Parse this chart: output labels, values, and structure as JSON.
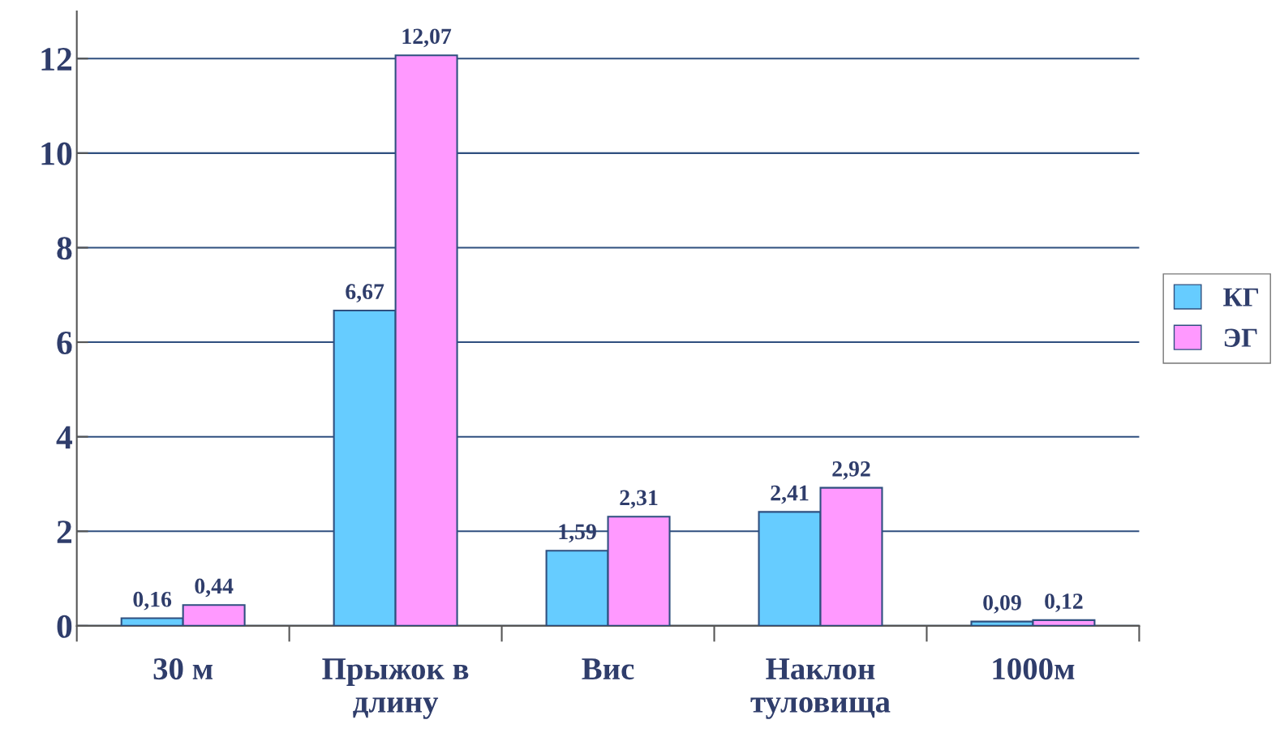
{
  "chart_data": {
    "type": "bar",
    "categories": [
      "30 м",
      "Прыжок в\nдлину",
      "Вис",
      "Наклон\nтуловища",
      "1000м"
    ],
    "series": [
      {
        "name": "КГ",
        "color": "#66ccff",
        "values": [
          0.16,
          6.67,
          1.59,
          2.41,
          0.09
        ],
        "value_labels": [
          "0,16",
          "6,67",
          "1,59",
          "2,41",
          "0,09"
        ]
      },
      {
        "name": "ЭГ",
        "color": "#ff99ff",
        "values": [
          0.44,
          12.07,
          2.31,
          2.92,
          0.12
        ],
        "value_labels": [
          "0,44",
          "12,07",
          "2,31",
          "2,92",
          "0,12"
        ]
      }
    ],
    "ylim": [
      0,
      13
    ],
    "yticks": [
      0,
      2,
      4,
      6,
      8,
      10,
      12
    ],
    "grid": "y",
    "legend": "right"
  }
}
